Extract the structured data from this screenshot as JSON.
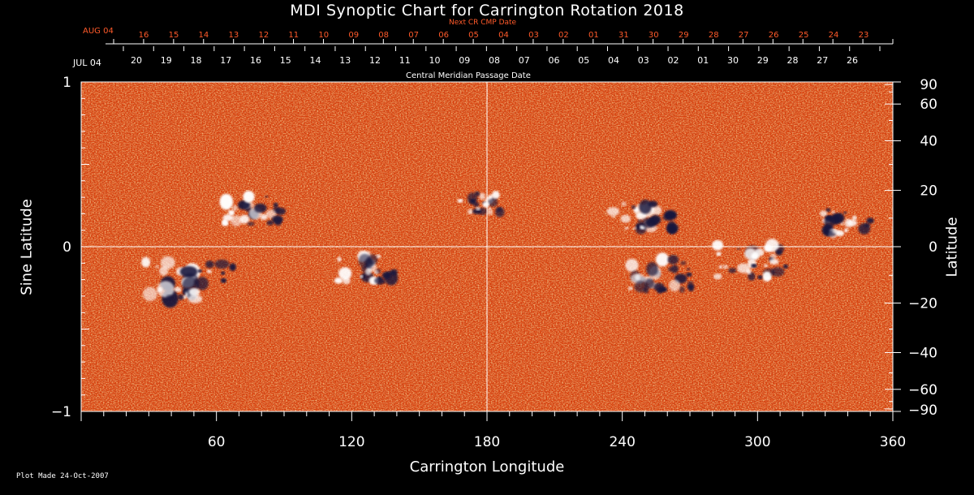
{
  "chart_data": {
    "type": "heatmap",
    "title": "MDI Synoptic Chart for Carrington Rotation 2018",
    "xlabel": "Carrington Longitude",
    "ylabel_left": "Sine Latitude",
    "ylabel_right": "Latitude",
    "xlim": [
      0,
      360
    ],
    "ylim": [
      -1,
      1
    ],
    "x_ticks": [
      60,
      120,
      180,
      240,
      300,
      360
    ],
    "y_ticks_left": [
      {
        "value": 1,
        "label": "1"
      },
      {
        "value": 0,
        "label": "0"
      },
      {
        "value": -1,
        "label": "−1"
      }
    ],
    "y_ticks_right": [
      90,
      60,
      40,
      20,
      0,
      -20,
      -40,
      -60,
      -90
    ],
    "top_axis_red": {
      "label": "Next CR CMP Date",
      "start_label": "AUG 04",
      "days": [
        "16",
        "15",
        "14",
        "13",
        "12",
        "11",
        "10",
        "09",
        "08",
        "07",
        "06",
        "05",
        "04",
        "03",
        "02",
        "01",
        "31",
        "30",
        "29",
        "28",
        "27",
        "26",
        "25",
        "24",
        "23"
      ]
    },
    "top_axis_white": {
      "label": "Central Meridian Passage Date",
      "start_label": "JUL 04",
      "days": [
        "20",
        "19",
        "18",
        "17",
        "16",
        "15",
        "14",
        "13",
        "12",
        "11",
        "10",
        "09",
        "08",
        "07",
        "06",
        "05",
        "04",
        "03",
        "02",
        "01",
        "30",
        "29",
        "28",
        "27",
        "26"
      ]
    },
    "active_regions": [
      {
        "lon": 48,
        "sinlat": -0.2,
        "polarity": "mixed",
        "strength": 1.0
      },
      {
        "lon": 78,
        "sinlat": 0.22,
        "polarity": "mixed",
        "strength": 0.7
      },
      {
        "lon": 125,
        "sinlat": -0.13,
        "polarity": "mixed",
        "strength": 0.7
      },
      {
        "lon": 178,
        "sinlat": 0.27,
        "polarity": "mixed",
        "strength": 0.5
      },
      {
        "lon": 250,
        "sinlat": 0.19,
        "polarity": "mixed",
        "strength": 0.7
      },
      {
        "lon": 255,
        "sinlat": -0.17,
        "polarity": "mixed",
        "strength": 0.8
      },
      {
        "lon": 298,
        "sinlat": -0.09,
        "polarity": "mixed",
        "strength": 0.8
      },
      {
        "lon": 338,
        "sinlat": 0.15,
        "polarity": "mixed",
        "strength": 0.6
      }
    ],
    "colors": {
      "background": "#d9400c",
      "positive": "#ffffff",
      "negative": "#14143c",
      "grid": "#ffffff",
      "date_red": "#ff5a2a"
    }
  },
  "footer": "Plot Made 24-Oct-2007"
}
